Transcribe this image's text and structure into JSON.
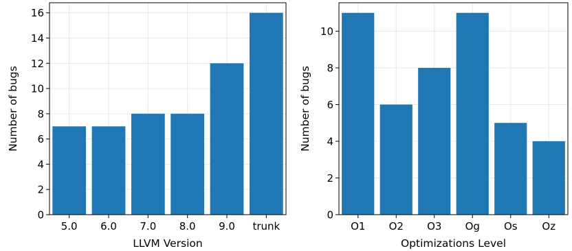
{
  "chart_data": [
    {
      "type": "bar",
      "title": "",
      "xlabel": "LLVM Version",
      "ylabel": "Number of bugs",
      "categories": [
        "5.0",
        "6.0",
        "7.0",
        "8.0",
        "9.0",
        "trunk"
      ],
      "values": [
        7,
        7,
        8,
        8,
        12,
        16
      ],
      "ylim": [
        0,
        16.8
      ],
      "yticks": [
        0,
        2,
        4,
        6,
        8,
        10,
        12,
        14,
        16
      ],
      "grid": true,
      "bar_color": "#1f77b4"
    },
    {
      "type": "bar",
      "title": "",
      "xlabel": "Optimizations Level",
      "ylabel": "Number of bugs",
      "categories": [
        "O1",
        "O2",
        "O3",
        "Og",
        "Os",
        "Oz"
      ],
      "values": [
        11,
        6,
        8,
        11,
        5,
        4
      ],
      "ylim": [
        0,
        11.55
      ],
      "yticks": [
        0,
        2,
        4,
        6,
        8,
        10
      ],
      "grid": true,
      "bar_color": "#1f77b4"
    }
  ]
}
